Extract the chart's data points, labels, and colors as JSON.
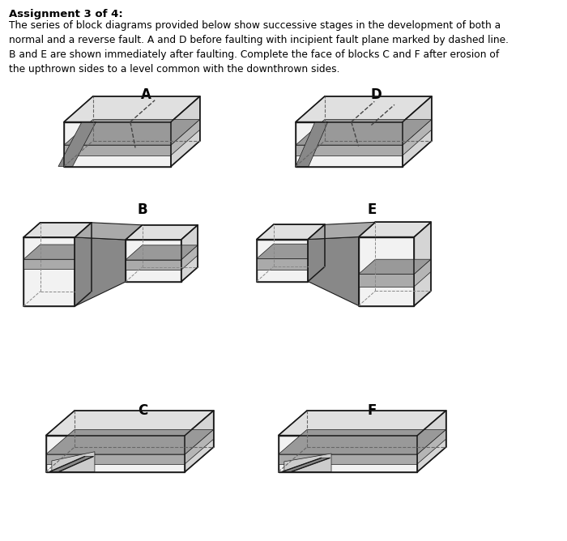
{
  "title": "Assignment 3 of 4:",
  "line1": "The series of block diagrams provided below show successive stages in the development of both a",
  "line2": "normal and a reverse fault. A and D before faulting with incipient fault plane marked by dashed line.",
  "line3": "B and E are shown immediately after faulting. Complete the face of blocks C and F after erosion of",
  "line4": "the upthrown sides to a level common with the downthrown sides.",
  "labels": [
    "A",
    "B",
    "C",
    "D",
    "E",
    "F"
  ],
  "col_front": "#f2f2f2",
  "col_top": "#e0e0e0",
  "col_right": "#d5d5d5",
  "col_band_front": "#aaaaaa",
  "col_band_top": "#999999",
  "col_band_right": "#b5b5b5",
  "col_fault": "#888888",
  "col_line": "#1a1a1a",
  "col_hidden": "#666666",
  "col_dash": "#444444",
  "bg_color": "#ffffff"
}
